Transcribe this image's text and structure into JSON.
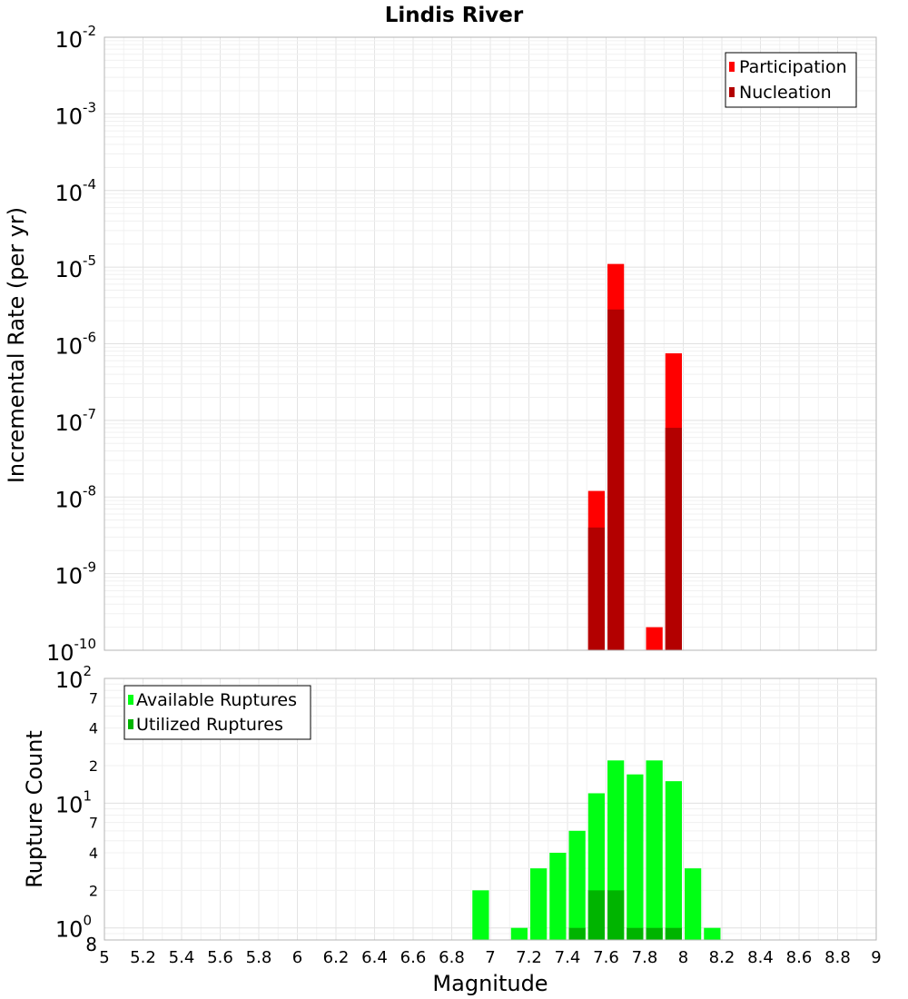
{
  "chart_data": [
    {
      "type": "bar",
      "title": "Lindis River",
      "xlabel": "",
      "ylabel": "Incremental Rate (per yr)",
      "yscale": "log",
      "xlim": [
        5,
        9
      ],
      "ylim": [
        1e-10,
        0.01
      ],
      "ytick_exponents": [
        "-10",
        "-9",
        "-8",
        "-7",
        "-6",
        "-5",
        "-4",
        "-3",
        "-2"
      ],
      "grid": true,
      "legend_position": "top-right",
      "bar_width": 0.1,
      "series": [
        {
          "name": "Participation",
          "color": "#ff0000",
          "x": [
            7.55,
            7.65,
            7.85,
            7.95
          ],
          "values": [
            1.2e-08,
            1.1e-05,
            2e-10,
            7.5e-07
          ]
        },
        {
          "name": "Nucleation",
          "color": "#b30000",
          "x": [
            7.55,
            7.65,
            7.95
          ],
          "values": [
            4e-09,
            2.8e-06,
            8e-08
          ]
        }
      ]
    },
    {
      "type": "bar",
      "title": "",
      "xlabel": "Magnitude",
      "ylabel": "Rupture Count",
      "yscale": "log",
      "xlim": [
        5,
        9
      ],
      "ylim": [
        0.8,
        100
      ],
      "xticks": [
        "5",
        "5.2",
        "5.4",
        "5.6",
        "5.8",
        "6",
        "6.2",
        "6.4",
        "6.6",
        "6.8",
        "7",
        "7.2",
        "7.4",
        "7.6",
        "7.8",
        "8",
        "8.2",
        "8.4",
        "8.6",
        "8.8",
        "9"
      ],
      "grid": true,
      "legend_position": "top-left",
      "bar_width": 0.1,
      "series": [
        {
          "name": "Available Ruptures",
          "color": "#00ff14",
          "x": [
            6.95,
            7.15,
            7.25,
            7.35,
            7.45,
            7.55,
            7.65,
            7.75,
            7.85,
            7.95,
            8.05,
            8.15
          ],
          "values": [
            2,
            1,
            3,
            4,
            6,
            12,
            22,
            17,
            22,
            15,
            3,
            1
          ]
        },
        {
          "name": "Utilized Ruptures",
          "color": "#00b400",
          "x": [
            7.45,
            7.55,
            7.65,
            7.75,
            7.85,
            7.95
          ],
          "values": [
            1,
            2,
            2,
            1,
            1,
            1
          ]
        }
      ]
    }
  ],
  "bottom_ticks": {
    "major": [
      {
        "base": "10",
        "exp": "2"
      },
      {
        "base": "10",
        "exp": "1"
      },
      {
        "base": "10",
        "exp": "0"
      }
    ],
    "minor": [
      "7",
      "4",
      "2",
      "7",
      "4",
      "2",
      "8"
    ]
  }
}
